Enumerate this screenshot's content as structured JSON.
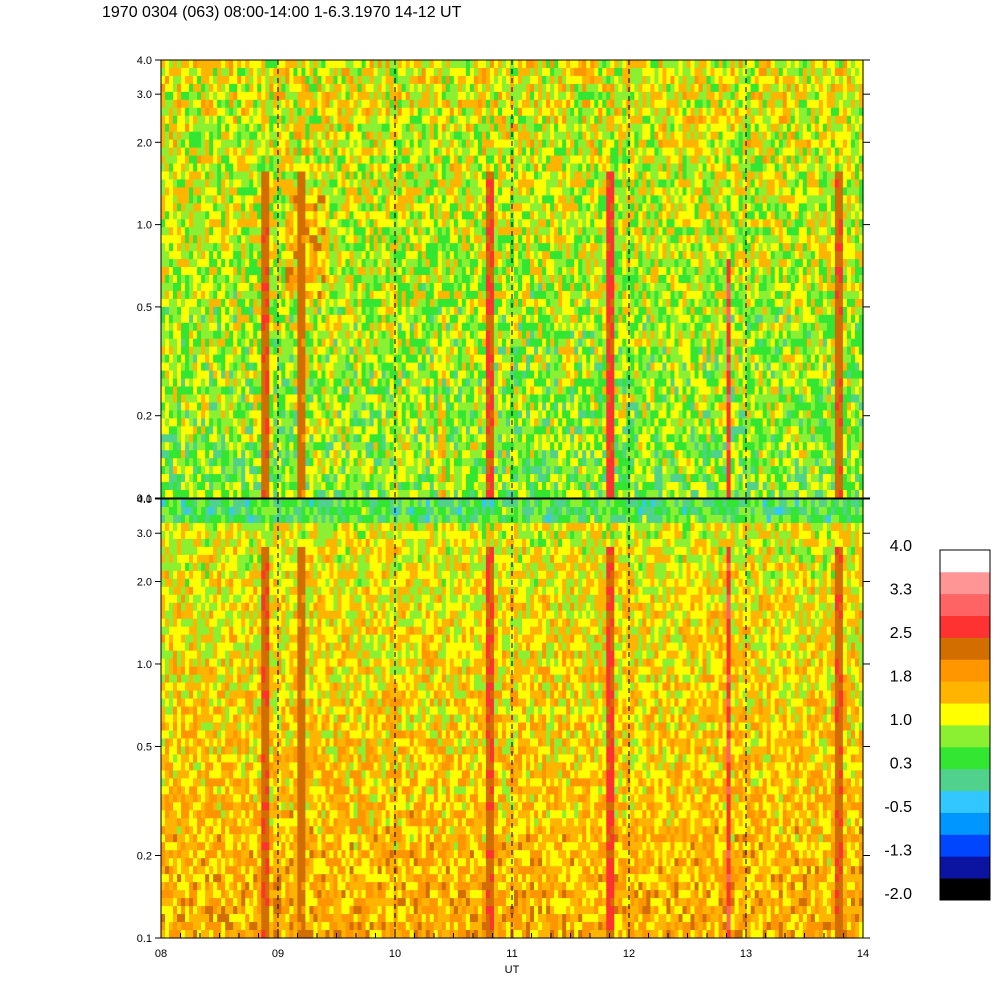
{
  "title": "1970 0304 (063) 08:00-14:00 1-6.3.1970  14-12 UT",
  "chart_data": {
    "type": "heatmap",
    "panels": [
      {
        "name": "",
        "yscale": "log",
        "ylim": [
          0.1,
          4.0
        ],
        "yticks": [
          {
            "value": 0.1,
            "label": "0.1"
          },
          {
            "value": 0.2,
            "label": "0.2"
          },
          {
            "value": 0.5,
            "label": "0.5"
          },
          {
            "value": 1.0,
            "label": "1.0"
          },
          {
            "value": 2.0,
            "label": "2.0"
          },
          {
            "value": 3.0,
            "label": "3.0"
          },
          {
            "value": 4.0,
            "label": "4.0"
          }
        ],
        "dominant_level": 0.5
      },
      {
        "name": "",
        "yscale": "log",
        "ylim": [
          0.1,
          4.0
        ],
        "yticks": [
          {
            "value": 0.1,
            "label": "0.1"
          },
          {
            "value": 0.2,
            "label": "0.2"
          },
          {
            "value": 0.5,
            "label": "0.5"
          },
          {
            "value": 1.0,
            "label": "1.0"
          },
          {
            "value": 2.0,
            "label": "2.0"
          },
          {
            "value": 3.0,
            "label": "3.0"
          },
          {
            "value": 4.0,
            "label": "4.0"
          }
        ],
        "dominant_level": 1.6
      }
    ],
    "x": {
      "label": "UT",
      "range": [
        8,
        14
      ],
      "ticks": [
        {
          "value": 8,
          "label": "08"
        },
        {
          "value": 9,
          "label": "09"
        },
        {
          "value": 10,
          "label": "10"
        },
        {
          "value": 11,
          "label": "11"
        },
        {
          "value": 12,
          "label": "12"
        },
        {
          "value": 13,
          "label": "13"
        },
        {
          "value": 14,
          "label": "14"
        }
      ],
      "dashed_lines_at": [
        9,
        10,
        11,
        12,
        13
      ]
    },
    "highlight_bands": [
      {
        "x": 8.9,
        "level": 2.6
      },
      {
        "x": 9.2,
        "level": 2.5
      },
      {
        "x": 10.8,
        "level": 2.7
      },
      {
        "x": 11.85,
        "level": 2.8
      },
      {
        "x": 12.85,
        "level": 3.0
      },
      {
        "x": 13.8,
        "level": 2.6
      }
    ],
    "colorbar": {
      "range": [
        -2.0,
        4.0
      ],
      "labels": [
        "4.0",
        "3.3",
        "2.5",
        "1.8",
        "1.0",
        "0.3",
        "-0.5",
        "-1.3",
        "-2.0"
      ],
      "colors": [
        "#000000",
        "#0a14a0",
        "#0046ff",
        "#0096ff",
        "#32c8ff",
        "#50d28c",
        "#32e632",
        "#8cf032",
        "#ffff00",
        "#ffb400",
        "#ff9600",
        "#d26e00",
        "#ff3232",
        "#ff6464",
        "#ff9696",
        "#ffffff"
      ]
    }
  }
}
